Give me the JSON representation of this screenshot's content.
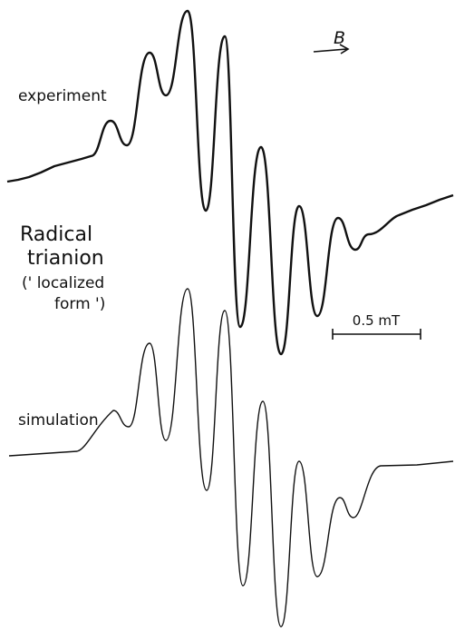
{
  "labels": {
    "experiment": "experiment",
    "field": "B",
    "name_line1": "Radical",
    "name_line2": "trianion",
    "form_line1": "(' localized",
    "form_line2": "form ')",
    "scale": "0.5 mT",
    "simulation": "simulation"
  }
}
